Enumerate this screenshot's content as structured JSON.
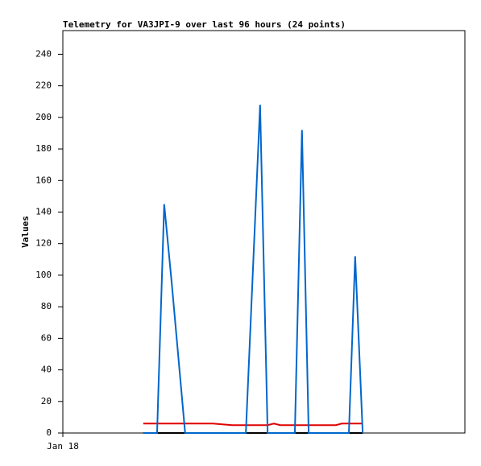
{
  "chart_data": {
    "type": "line",
    "title": "Telemetry for VA3JPI-9 over last 96 hours (24 points)",
    "y_label": "Values",
    "x": [
      19.2,
      21.0,
      22.5,
      24.2,
      26.0,
      29.2,
      35.8,
      40.4,
      43.7,
      45.4,
      47.1,
      48.9,
      50.4,
      51.9,
      55.4,
      57.1,
      58.7,
      61.9,
      65.2,
      66.6,
      68.3,
      69.8,
      70.8,
      71.6
    ],
    "series": [
      {
        "color": "#000000",
        "values": [
          0,
          0,
          0,
          0,
          0,
          0,
          0,
          0,
          0,
          0,
          0,
          0,
          0,
          0,
          0,
          0,
          0,
          0,
          0,
          0,
          0,
          0,
          0,
          0
        ]
      },
      {
        "color": "#e00000",
        "values": [
          6,
          6,
          6,
          6,
          6,
          6,
          6,
          5,
          5,
          5,
          5,
          5,
          6,
          5,
          5,
          5,
          5,
          5,
          5,
          6,
          6,
          6,
          6,
          6
        ]
      },
      {
        "color": "#0066cc",
        "values": [
          0,
          0,
          0,
          145,
          95,
          0,
          0,
          0,
          0,
          104,
          208,
          0,
          0,
          0,
          0,
          192,
          0,
          0,
          0,
          0,
          0,
          112,
          50,
          0
        ]
      }
    ],
    "xlim": [
      0,
      96
    ],
    "xticks": [
      {
        "value": 0,
        "label": "Jan 18"
      }
    ],
    "ylim": [
      0,
      255
    ],
    "yticks": [
      0,
      20,
      40,
      60,
      80,
      100,
      120,
      140,
      160,
      180,
      200,
      220,
      240
    ]
  }
}
